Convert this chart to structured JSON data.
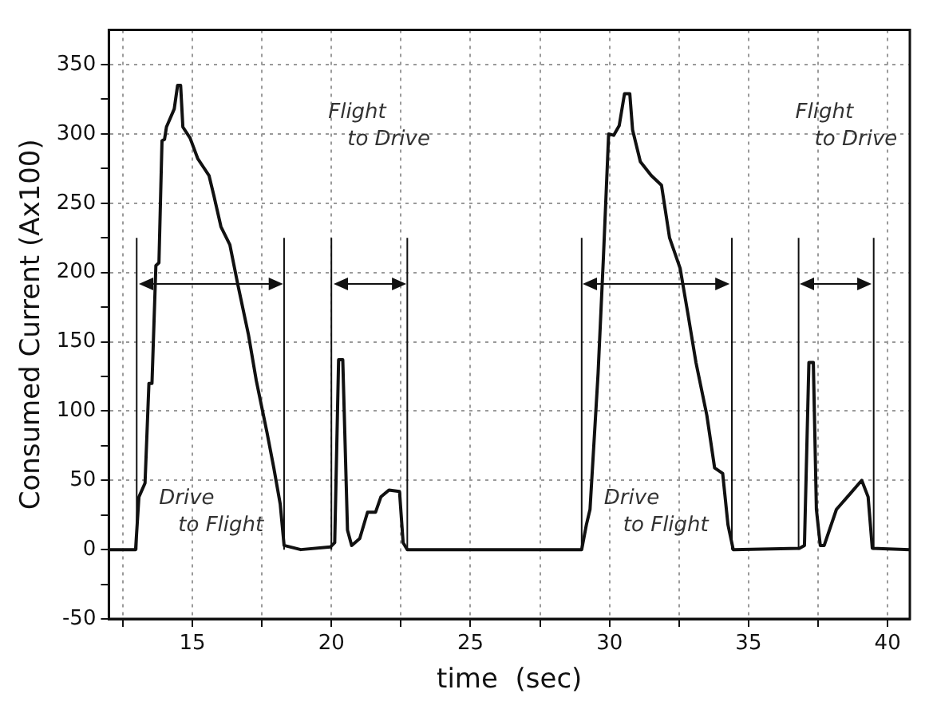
{
  "chart_data": {
    "type": "line",
    "xlabel": "time  (sec)",
    "ylabel": "Consumed Current (Ax100)",
    "xlim": [
      12,
      40.8
    ],
    "ylim": [
      -50,
      375
    ],
    "xticks": [
      {
        "value": 12.5,
        "label": null
      },
      15,
      {
        "value": 17.5,
        "label": null
      },
      20,
      {
        "value": 22.5,
        "label": null
      },
      25,
      {
        "value": 27.5,
        "label": null
      },
      30,
      {
        "value": 32.5,
        "label": null
      },
      35,
      {
        "value": 37.5,
        "label": null
      },
      40
    ],
    "yticks": [
      -50,
      {
        "value": -25,
        "label": null
      },
      0,
      {
        "value": 25,
        "label": null
      },
      50,
      {
        "value": 75,
        "label": null
      },
      100,
      {
        "value": 125,
        "label": null
      },
      150,
      {
        "value": 175,
        "label": null
      },
      200,
      {
        "value": 225,
        "label": null
      },
      250,
      {
        "value": 275,
        "label": null
      },
      300,
      {
        "value": 325,
        "label": null
      },
      350
    ],
    "grid": true,
    "legend": false,
    "marker": "none",
    "line_style": "solid",
    "series": [
      {
        "color": "#111111",
        "x": [
          12,
          12.96,
          13.08,
          13.3,
          13.44,
          13.55,
          13.69,
          13.8,
          13.91,
          14.0,
          14.07,
          14.35,
          14.47,
          14.58,
          14.66,
          14.92,
          15.2,
          15.6,
          15.78,
          16.03,
          16.35,
          16.64,
          17.02,
          17.3,
          17.69,
          17.93,
          18.16,
          18.3,
          18.9,
          19.97,
          20.12,
          20.26,
          20.41,
          20.58,
          20.73,
          21.02,
          21.3,
          21.59,
          21.78,
          22.07,
          22.45,
          22.58,
          22.73,
          29.0,
          29.17,
          29.3,
          29.59,
          29.78,
          29.97,
          30.15,
          30.35,
          30.54,
          30.73,
          30.83,
          31.11,
          31.5,
          31.87,
          32.16,
          32.54,
          32.83,
          33.11,
          33.5,
          33.78,
          34.07,
          34.26,
          34.45,
          36.83,
          37.01,
          37.17,
          37.33,
          37.44,
          37.58,
          37.72,
          38.16,
          38.64,
          39.07,
          39.3,
          39.45,
          40.8
        ],
        "values": [
          0,
          0,
          38,
          48,
          120,
          120,
          205,
          207,
          295,
          296,
          305,
          318,
          335,
          335,
          305,
          297,
          282,
          270,
          255,
          233,
          220,
          191,
          155,
          122,
          84,
          59,
          33,
          3,
          0,
          2,
          5,
          137,
          137,
          14,
          3,
          8,
          27,
          27,
          38,
          43,
          42,
          5,
          0,
          0,
          18,
          29,
          127,
          210,
          300,
          299,
          306,
          329,
          329,
          303,
          280,
          270,
          263,
          225,
          203,
          169,
          135,
          97,
          59,
          55,
          18,
          0,
          1,
          3,
          135,
          135,
          29,
          3,
          3,
          29,
          40,
          50,
          38,
          1,
          0
        ]
      }
    ],
    "ref_lines": [
      {
        "axis": "x",
        "value": 13.0
      },
      {
        "axis": "x",
        "value": 18.3
      },
      {
        "axis": "x",
        "value": 20.0
      },
      {
        "axis": "x",
        "value": 22.73
      },
      {
        "axis": "x",
        "value": 29.0
      },
      {
        "axis": "x",
        "value": 34.4
      },
      {
        "axis": "x",
        "value": 36.8
      },
      {
        "axis": "x",
        "value": 39.5
      }
    ],
    "annotations": [
      "Drive to Flight",
      "Flight to Drive",
      "Drive to Flight",
      "Flight to Drive"
    ]
  }
}
